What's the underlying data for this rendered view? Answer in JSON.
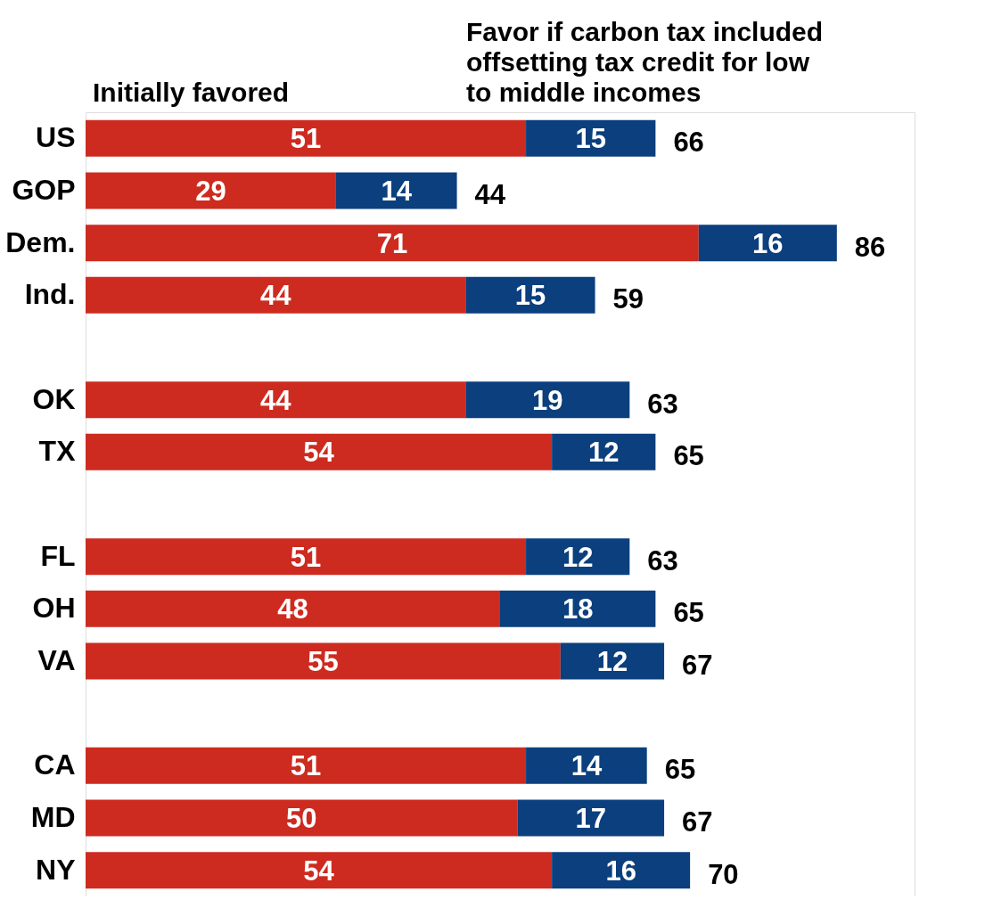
{
  "chart_data": {
    "type": "bar",
    "orientation": "horizontal",
    "stacked": true,
    "data_labels": true,
    "tick_labels": "y",
    "xlim": [
      0,
      96
    ],
    "categories": [
      "US",
      "GOP",
      "Dem.",
      "Ind.",
      null,
      "OK",
      "TX",
      null,
      "FL",
      "OH",
      "VA",
      null,
      "CA",
      "MD",
      "NY"
    ],
    "series": [
      {
        "name": "Initially favored",
        "color": "#cd2b20",
        "values": [
          51,
          29,
          71,
          44,
          null,
          44,
          54,
          null,
          51,
          48,
          55,
          null,
          51,
          50,
          54
        ]
      },
      {
        "name": "Favor if carbon tax included offsetting tax credit for low to middle incomes",
        "color": "#0b3f7e",
        "values": [
          15,
          14,
          16,
          15,
          null,
          19,
          12,
          null,
          12,
          18,
          12,
          null,
          14,
          17,
          16
        ]
      }
    ],
    "totals": [
      "66",
      "44",
      "86",
      "59",
      null,
      "63",
      "65",
      null,
      "63",
      "65",
      "67",
      null,
      "65",
      "67",
      "70"
    ]
  }
}
